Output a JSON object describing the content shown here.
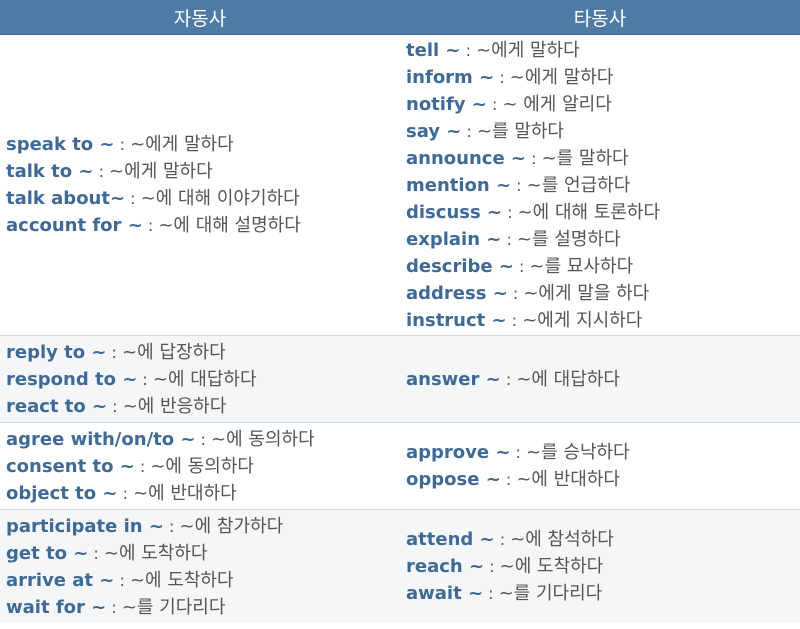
{
  "headers": {
    "intransitive": "자동사",
    "transitive": "타동사"
  },
  "rows": [
    {
      "intransitive": [
        {
          "term": "speak to ~",
          "meaning": "~에게 말하다"
        },
        {
          "term": "talk to ~",
          "meaning": "~에게 말하다"
        },
        {
          "term": "talk about~",
          "meaning": "~에 대해 이야기하다"
        },
        {
          "term": "account for ~",
          "meaning": "~에 대해 설명하다"
        }
      ],
      "transitive": [
        {
          "term": "tell ~",
          "meaning": "~에게 말하다"
        },
        {
          "term": "inform ~",
          "meaning": " ~에게 말하다"
        },
        {
          "term": "notify ~",
          "meaning": "~ 에게 알리다"
        },
        {
          "term": "say ~",
          "meaning": "~를 말하다"
        },
        {
          "term": "announce ~",
          "meaning": "~를 말하다"
        },
        {
          "term": "mention ~",
          "meaning": "~를 언급하다"
        },
        {
          "term": "discuss ~",
          "meaning": "~에 대해 토론하다"
        },
        {
          "term": "explain ~",
          "meaning": "~를 설명하다"
        },
        {
          "term": "describe ~",
          "meaning": "~를 묘사하다"
        },
        {
          "term": "address ~",
          "meaning": "~에게 말을 하다"
        },
        {
          "term": "instruct ~",
          "meaning": "~에게 지시하다"
        }
      ]
    },
    {
      "intransitive": [
        {
          "term": "reply to ~",
          "meaning": "~에 답장하다"
        },
        {
          "term": "respond to ~",
          "meaning": "~에 대답하다"
        },
        {
          "term": "react to ~",
          "meaning": "~에 반응하다"
        }
      ],
      "transitive": [
        {
          "term": "answer ~",
          "meaning": "~에 대답하다"
        }
      ]
    },
    {
      "intransitive": [
        {
          "term": "agree with/on/to ~",
          "meaning": "~에 동의하다"
        },
        {
          "term": "consent to ~",
          "meaning": "~에 동의하다"
        },
        {
          "term": "object to ~",
          "meaning": "~에 반대하다"
        }
      ],
      "transitive": [
        {
          "term": "approve ~",
          "meaning": "~를 승낙하다"
        },
        {
          "term": "oppose ~",
          "meaning": "~에 반대하다"
        }
      ]
    },
    {
      "intransitive": [
        {
          "term": "participate in ~",
          "meaning": "~에 참가하다"
        },
        {
          "term": "get to ~",
          "meaning": "~에 도착하다"
        },
        {
          "term": "arrive at  ~",
          "meaning": "~에 도착하다"
        },
        {
          "term": "wait for ~",
          "meaning": "~를 기다리다"
        }
      ],
      "transitive": [
        {
          "term": "attend ~",
          "meaning": "~에 참석하다"
        },
        {
          "term": "reach ~",
          "meaning": "~에 도착하다"
        },
        {
          "term": "await ~",
          "meaning": "~를 기다리다"
        }
      ]
    }
  ]
}
